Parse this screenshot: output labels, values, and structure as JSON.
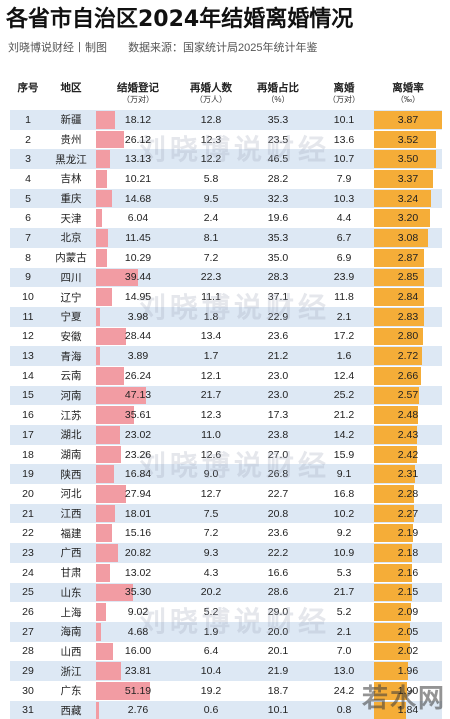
{
  "page": {
    "title": "各省市自治区2024年结婚离婚情况",
    "author": "刘晓博说财经丨制图",
    "source": "数据来源：国家统计局2025年统计年鉴",
    "watermark": "刘晓博说财经",
    "corner_mark": "若水网",
    "colors": {
      "marriage_bar": "#f29ca3",
      "rate_bar": "#f5ad38",
      "row_band": "#dde8f4"
    }
  },
  "chart_data": {
    "type": "table",
    "columns": [
      {
        "label": "序号",
        "unit": ""
      },
      {
        "label": "地区",
        "unit": ""
      },
      {
        "label": "结婚登记",
        "unit": "（万对）"
      },
      {
        "label": "再婚人数",
        "unit": "（万人）"
      },
      {
        "label": "再婚占比",
        "unit": "（%）"
      },
      {
        "label": "离婚",
        "unit": "（万对）"
      },
      {
        "label": "离婚率",
        "unit": "（‰）"
      }
    ],
    "marriage_max": 51.19,
    "rate_max": 3.87,
    "rows": [
      {
        "idx": "1",
        "region": "新疆",
        "marriage": "18.12",
        "remarry": "12.8",
        "ratio": "35.3",
        "divorce": "10.1",
        "rate": "3.87"
      },
      {
        "idx": "2",
        "region": "贵州",
        "marriage": "26.12",
        "remarry": "12.3",
        "ratio": "23.5",
        "divorce": "13.6",
        "rate": "3.52"
      },
      {
        "idx": "3",
        "region": "黑龙江",
        "marriage": "13.13",
        "remarry": "12.2",
        "ratio": "46.5",
        "divorce": "10.7",
        "rate": "3.50"
      },
      {
        "idx": "4",
        "region": "吉林",
        "marriage": "10.21",
        "remarry": "5.8",
        "ratio": "28.2",
        "divorce": "7.9",
        "rate": "3.37"
      },
      {
        "idx": "5",
        "region": "重庆",
        "marriage": "14.68",
        "remarry": "9.5",
        "ratio": "32.3",
        "divorce": "10.3",
        "rate": "3.24"
      },
      {
        "idx": "6",
        "region": "天津",
        "marriage": "6.04",
        "remarry": "2.4",
        "ratio": "19.6",
        "divorce": "4.4",
        "rate": "3.20"
      },
      {
        "idx": "7",
        "region": "北京",
        "marriage": "11.45",
        "remarry": "8.1",
        "ratio": "35.3",
        "divorce": "6.7",
        "rate": "3.08"
      },
      {
        "idx": "8",
        "region": "内蒙古",
        "marriage": "10.29",
        "remarry": "7.2",
        "ratio": "35.0",
        "divorce": "6.9",
        "rate": "2.87"
      },
      {
        "idx": "9",
        "region": "四川",
        "marriage": "39.44",
        "remarry": "22.3",
        "ratio": "28.3",
        "divorce": "23.9",
        "rate": "2.85"
      },
      {
        "idx": "10",
        "region": "辽宁",
        "marriage": "14.95",
        "remarry": "11.1",
        "ratio": "37.1",
        "divorce": "11.8",
        "rate": "2.84"
      },
      {
        "idx": "11",
        "region": "宁夏",
        "marriage": "3.98",
        "remarry": "1.8",
        "ratio": "22.9",
        "divorce": "2.1",
        "rate": "2.83"
      },
      {
        "idx": "12",
        "region": "安徽",
        "marriage": "28.44",
        "remarry": "13.4",
        "ratio": "23.6",
        "divorce": "17.2",
        "rate": "2.80"
      },
      {
        "idx": "13",
        "region": "青海",
        "marriage": "3.89",
        "remarry": "1.7",
        "ratio": "21.2",
        "divorce": "1.6",
        "rate": "2.72"
      },
      {
        "idx": "14",
        "region": "云南",
        "marriage": "26.24",
        "remarry": "12.1",
        "ratio": "23.0",
        "divorce": "12.4",
        "rate": "2.66"
      },
      {
        "idx": "15",
        "region": "河南",
        "marriage": "47.13",
        "remarry": "21.7",
        "ratio": "23.0",
        "divorce": "25.2",
        "rate": "2.57"
      },
      {
        "idx": "16",
        "region": "江苏",
        "marriage": "35.61",
        "remarry": "12.3",
        "ratio": "17.3",
        "divorce": "21.2",
        "rate": "2.48"
      },
      {
        "idx": "17",
        "region": "湖北",
        "marriage": "23.02",
        "remarry": "11.0",
        "ratio": "23.8",
        "divorce": "14.2",
        "rate": "2.43"
      },
      {
        "idx": "18",
        "region": "湖南",
        "marriage": "23.26",
        "remarry": "12.6",
        "ratio": "27.0",
        "divorce": "15.9",
        "rate": "2.42"
      },
      {
        "idx": "19",
        "region": "陕西",
        "marriage": "16.84",
        "remarry": "9.0",
        "ratio": "26.8",
        "divorce": "9.1",
        "rate": "2.31"
      },
      {
        "idx": "20",
        "region": "河北",
        "marriage": "27.94",
        "remarry": "12.7",
        "ratio": "22.7",
        "divorce": "16.8",
        "rate": "2.28"
      },
      {
        "idx": "21",
        "region": "江西",
        "marriage": "18.01",
        "remarry": "7.5",
        "ratio": "20.8",
        "divorce": "10.2",
        "rate": "2.27"
      },
      {
        "idx": "22",
        "region": "福建",
        "marriage": "15.16",
        "remarry": "7.2",
        "ratio": "23.6",
        "divorce": "9.2",
        "rate": "2.19"
      },
      {
        "idx": "23",
        "region": "广西",
        "marriage": "20.82",
        "remarry": "9.3",
        "ratio": "22.2",
        "divorce": "10.9",
        "rate": "2.18"
      },
      {
        "idx": "24",
        "region": "甘肃",
        "marriage": "13.02",
        "remarry": "4.3",
        "ratio": "16.6",
        "divorce": "5.3",
        "rate": "2.16"
      },
      {
        "idx": "25",
        "region": "山东",
        "marriage": "35.30",
        "remarry": "20.2",
        "ratio": "28.6",
        "divorce": "21.7",
        "rate": "2.15"
      },
      {
        "idx": "26",
        "region": "上海",
        "marriage": "9.02",
        "remarry": "5.2",
        "ratio": "29.0",
        "divorce": "5.2",
        "rate": "2.09"
      },
      {
        "idx": "27",
        "region": "海南",
        "marriage": "4.68",
        "remarry": "1.9",
        "ratio": "20.0",
        "divorce": "2.1",
        "rate": "2.05"
      },
      {
        "idx": "28",
        "region": "山西",
        "marriage": "16.00",
        "remarry": "6.4",
        "ratio": "20.1",
        "divorce": "7.0",
        "rate": "2.02"
      },
      {
        "idx": "29",
        "region": "浙江",
        "marriage": "23.81",
        "remarry": "10.4",
        "ratio": "21.9",
        "divorce": "13.0",
        "rate": "1.96"
      },
      {
        "idx": "30",
        "region": "广东",
        "marriage": "51.19",
        "remarry": "19.2",
        "ratio": "18.7",
        "divorce": "24.2",
        "rate": "1.90"
      },
      {
        "idx": "31",
        "region": "西藏",
        "marriage": "2.76",
        "remarry": "0.6",
        "ratio": "10.1",
        "divorce": "0.8",
        "rate": "1.84"
      }
    ]
  }
}
